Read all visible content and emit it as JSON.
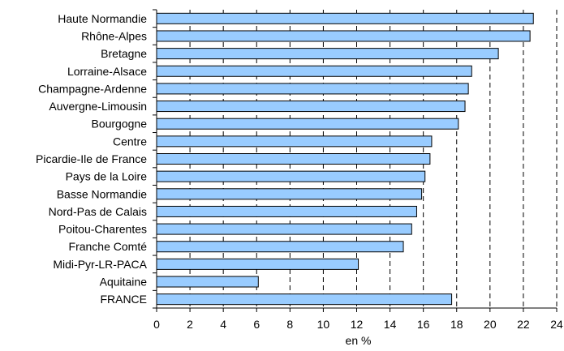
{
  "chart_data": {
    "type": "bar",
    "orientation": "horizontal",
    "categories": [
      "Haute Normandie",
      "Rhône-Alpes",
      "Bretagne",
      "Lorraine-Alsace",
      "Champagne-Ardenne",
      "Auvergne-Limousin",
      "Bourgogne",
      "Centre",
      "Picardie-Ile de France",
      "Pays de la Loire",
      "Basse Normandie",
      "Nord-Pas de Calais",
      "Poitou-Charentes",
      "Franche Comté",
      "Midi-Pyr-LR-PACA",
      "Aquitaine",
      "FRANCE"
    ],
    "values": [
      22.6,
      22.4,
      20.5,
      18.9,
      18.7,
      18.5,
      18.1,
      16.5,
      16.4,
      16.1,
      15.9,
      15.6,
      15.3,
      14.8,
      12.1,
      6.1,
      17.7
    ],
    "xlabel": "en %",
    "ylabel": "",
    "title": "",
    "xlim": [
      0,
      24
    ],
    "xticks": [
      "0",
      "2",
      "4",
      "6",
      "8",
      "10",
      "12",
      "14",
      "16",
      "18",
      "20",
      "22",
      "24"
    ],
    "grid": "vertical-dashed",
    "bar_color": "#99ccff",
    "bar_edge_color": "#000000"
  }
}
